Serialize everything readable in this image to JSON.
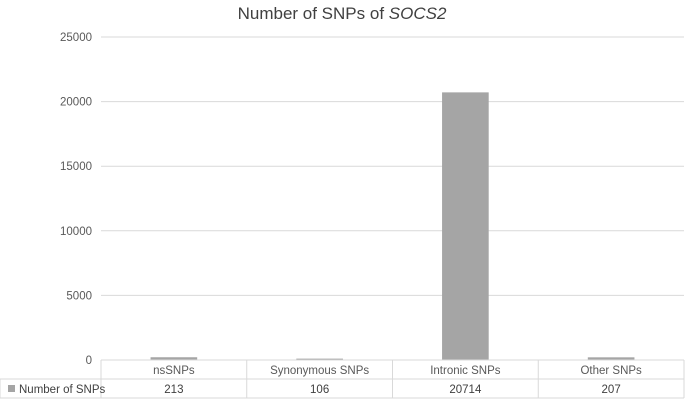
{
  "chart_data": {
    "type": "bar",
    "title_main": "Number of SNPs of ",
    "title_gene": "SOCS2",
    "categories": [
      "nsSNPs",
      "Synonymous SNPs",
      "Intronic SNPs",
      "Other SNPs"
    ],
    "series": [
      {
        "name": "Number of SNPs",
        "values": [
          213,
          106,
          20714,
          207
        ]
      }
    ],
    "value_labels": [
      "213",
      "106",
      "20714",
      "207"
    ],
    "ylim": [
      0,
      25000
    ],
    "yticks": [
      0,
      5000,
      10000,
      15000,
      20000,
      25000
    ],
    "ytick_labels": [
      "0",
      "5000",
      "10000",
      "15000",
      "20000",
      "25000"
    ],
    "grid": true,
    "legend": "data-table-left",
    "colors": {
      "bar": "#a5a5a5",
      "grid": "#d9d9d9",
      "text": "#595959",
      "title": "#404040"
    }
  }
}
